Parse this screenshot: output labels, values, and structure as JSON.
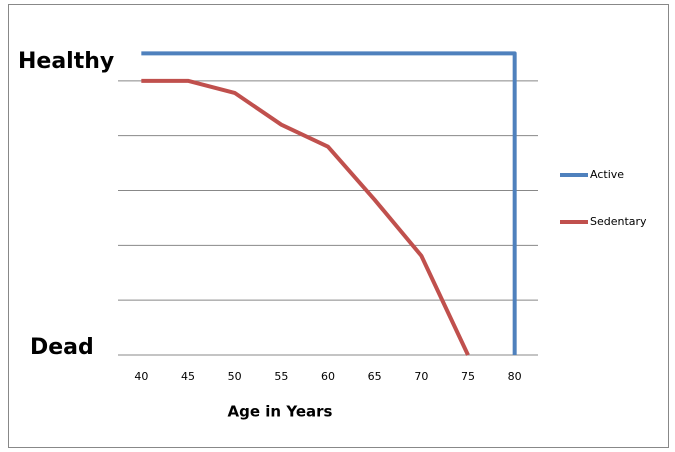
{
  "chart_data": {
    "type": "line",
    "x_label": "Age in Years",
    "y_top_label": "Healthy",
    "y_bottom_label": "Dead",
    "xlim": [
      37.5,
      82.5
    ],
    "xticks": [
      40,
      45,
      50,
      55,
      60,
      65,
      70,
      75,
      80
    ],
    "ylim": [
      0,
      6
    ],
    "yticks": [
      1,
      2,
      3,
      4,
      5
    ],
    "grid": true,
    "legend": "right",
    "series": [
      {
        "name": "Active",
        "color": "#4f81bd",
        "x": [
          40,
          80,
          80
        ],
        "values": [
          5.5,
          5.5,
          0
        ]
      },
      {
        "name": "Sedentary",
        "color": "#c0504d",
        "x": [
          40,
          45,
          50,
          55,
          60,
          65,
          70,
          75
        ],
        "values": [
          5.0,
          5.0,
          4.78,
          4.2,
          3.8,
          2.83,
          1.81,
          0
        ]
      }
    ]
  }
}
